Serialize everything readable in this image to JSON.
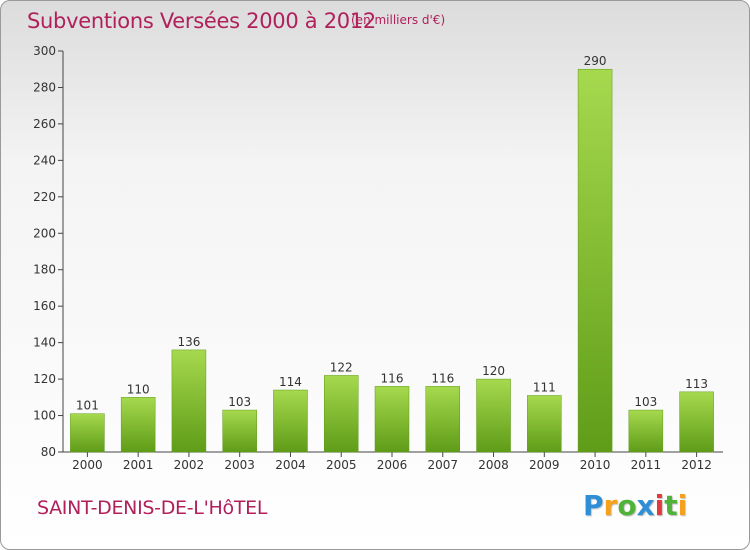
{
  "title": "Subventions Versées 2000 à 2012",
  "subtitle": "(en milliers d'€)",
  "city": "SAINT-DENIS-DE-L'HôTEL",
  "logo": {
    "letters": [
      "P",
      "r",
      "o",
      "x",
      "i",
      "t",
      "i"
    ],
    "colors": [
      "#2e8fd6",
      "#f5a11a",
      "#4fb33a",
      "#2e8fd6",
      "#e03a3a",
      "#4fb33a",
      "#f5a11a"
    ]
  },
  "chart_data": {
    "type": "bar",
    "categories": [
      "2000",
      "2001",
      "2002",
      "2003",
      "2004",
      "2005",
      "2006",
      "2007",
      "2008",
      "2009",
      "2010",
      "2011",
      "2012"
    ],
    "values": [
      101,
      110,
      136,
      103,
      114,
      122,
      116,
      116,
      120,
      111,
      290,
      103,
      113
    ],
    "title": "Subventions Versées 2000 à 2012",
    "ylim": [
      80,
      300
    ],
    "yticks": [
      80,
      100,
      120,
      140,
      160,
      180,
      200,
      220,
      240,
      260,
      280,
      300
    ],
    "grid": false,
    "bar_color": "#7dbb2a"
  }
}
